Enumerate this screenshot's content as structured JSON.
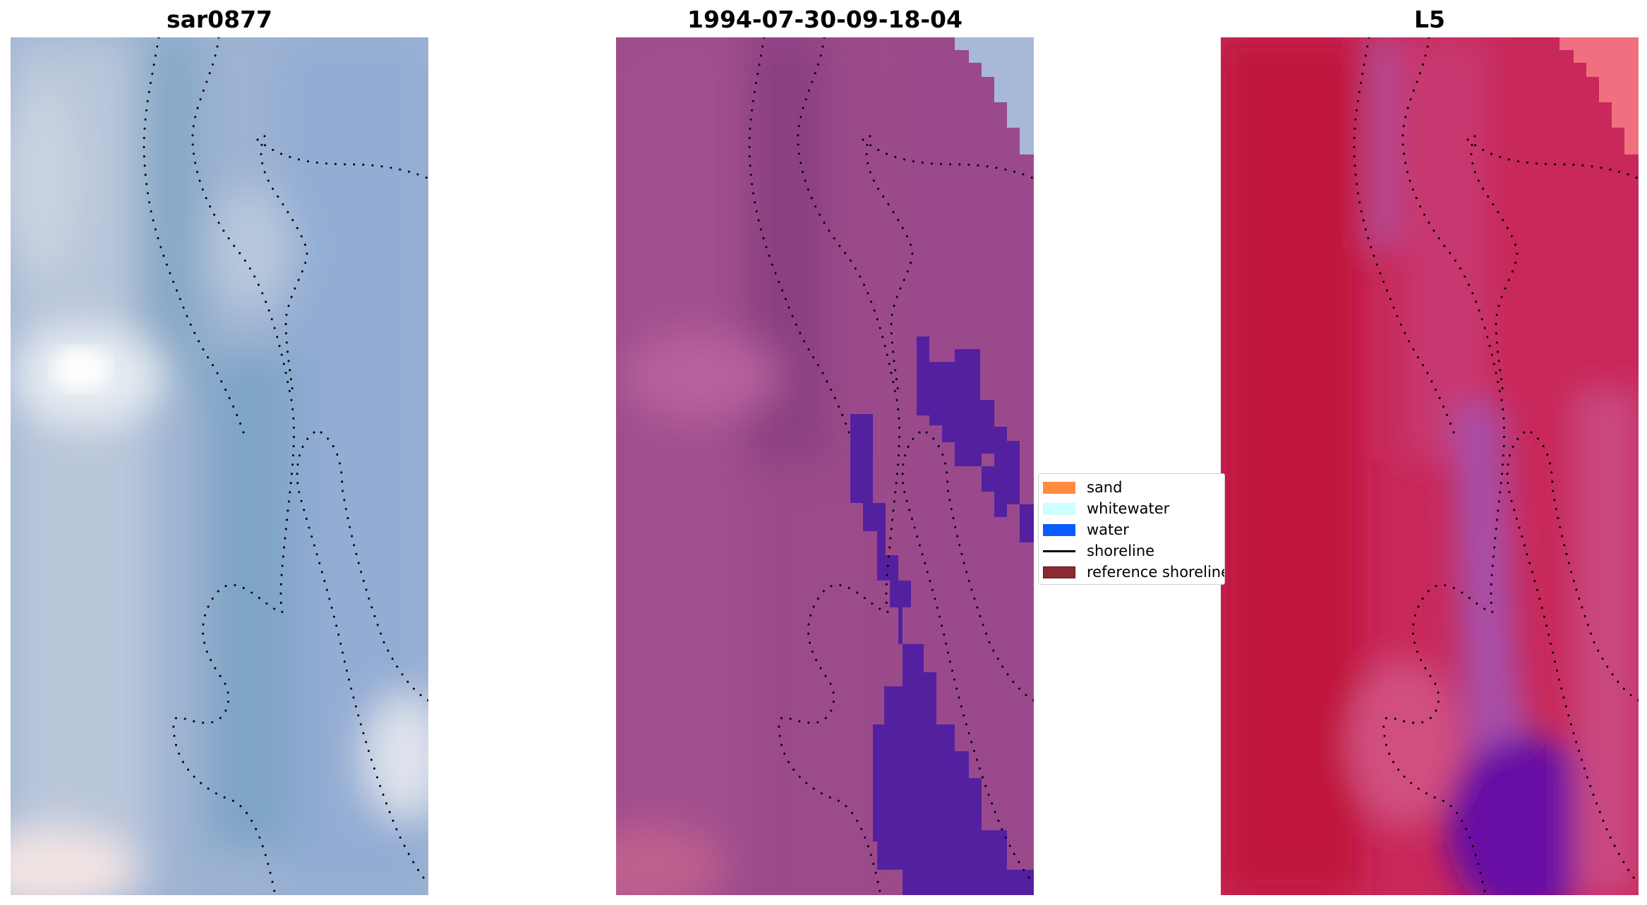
{
  "panels": [
    {
      "title": "sar0877"
    },
    {
      "title": "1994-07-30-09-18-04"
    },
    {
      "title": "L5"
    }
  ],
  "legend": {
    "items": [
      {
        "label": "sand",
        "kind": "patch",
        "color": "#ff8c40"
      },
      {
        "label": "whitewater",
        "kind": "patch",
        "color": "#ccffff"
      },
      {
        "label": "water",
        "kind": "patch",
        "color": "#0a5cff"
      },
      {
        "label": "shoreline",
        "kind": "line",
        "color": "#000000"
      },
      {
        "label": "reference shoreline",
        "kind": "patch",
        "color": "#8b2a30"
      }
    ]
  },
  "colors": {
    "rgb_base": "#9ab0d0",
    "classified_base": "#9c4a88",
    "classified_water": "#5020a0",
    "index_base": "#c81e50",
    "index_low": "#6a10a0"
  }
}
